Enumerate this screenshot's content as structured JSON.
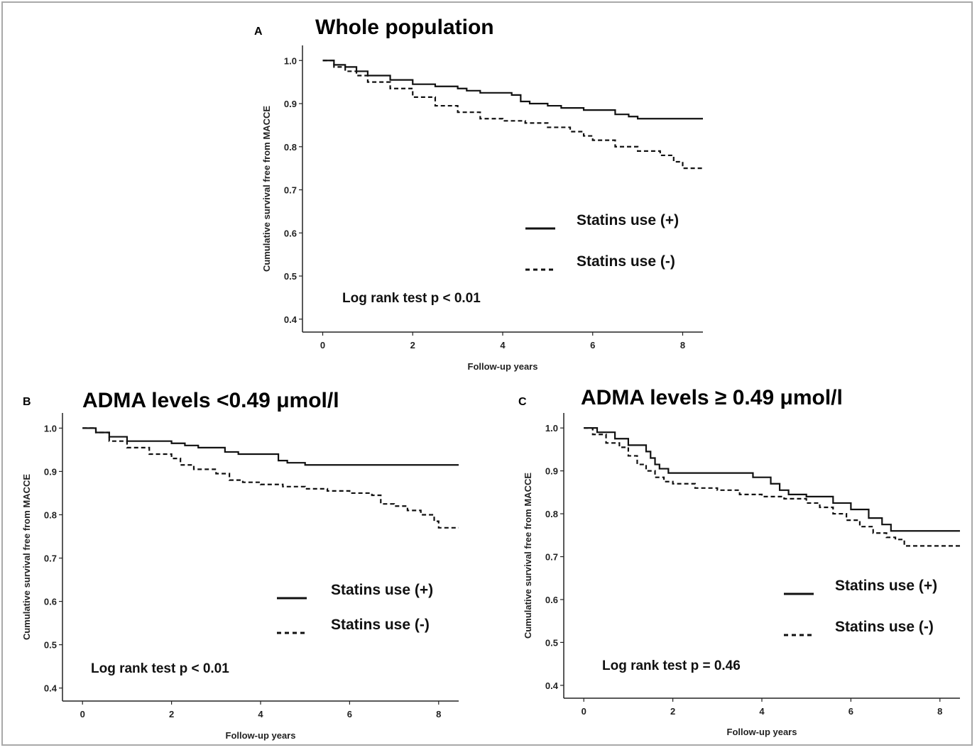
{
  "chart_data": [
    {
      "type": "line",
      "panel": "A",
      "title": "Whole population",
      "xlabel": "Follow-up years",
      "ylabel": "Cumulative survival free from MACCE",
      "xlim": [
        -0.45,
        8.45
      ],
      "ylim": [
        0.37,
        1.035
      ],
      "xticks": [
        0,
        2,
        4,
        6,
        8
      ],
      "yticks": [
        "0.4",
        "0.5",
        "0.6",
        "0.7",
        "0.8",
        "0.9",
        "1.0"
      ],
      "annotation": "Log rank test p < 0.01",
      "legend": [
        "Statins use (+)",
        "Statins use (-)"
      ],
      "series": [
        {
          "name": "Statins use (+)",
          "line_style": "solid",
          "x": [
            0,
            0.25,
            0.5,
            0.75,
            1.0,
            1.5,
            2.0,
            2.5,
            3.0,
            3.2,
            3.5,
            4.0,
            4.2,
            4.4,
            4.6,
            5.0,
            5.3,
            5.8,
            6.0,
            6.5,
            6.8,
            7.0,
            8.45
          ],
          "y": [
            1.0,
            0.99,
            0.985,
            0.975,
            0.965,
            0.955,
            0.945,
            0.94,
            0.935,
            0.93,
            0.925,
            0.925,
            0.92,
            0.905,
            0.9,
            0.895,
            0.89,
            0.885,
            0.885,
            0.875,
            0.87,
            0.865,
            0.865
          ]
        },
        {
          "name": "Statins use (-)",
          "line_style": "dashed",
          "x": [
            0,
            0.25,
            0.5,
            0.75,
            1.0,
            1.5,
            2.0,
            2.5,
            3.0,
            3.5,
            4.0,
            4.5,
            5.0,
            5.5,
            5.8,
            6.0,
            6.5,
            7.0,
            7.5,
            7.8,
            8.0,
            8.45
          ],
          "y": [
            1.0,
            0.985,
            0.975,
            0.965,
            0.95,
            0.935,
            0.915,
            0.895,
            0.88,
            0.865,
            0.86,
            0.855,
            0.845,
            0.835,
            0.825,
            0.815,
            0.8,
            0.79,
            0.78,
            0.765,
            0.75,
            0.75
          ]
        }
      ]
    },
    {
      "type": "line",
      "panel": "B",
      "title": "ADMA levels <0.49 μmol/l",
      "xlabel": "Follow-up years",
      "ylabel": "Cumulative survival free from MACCE",
      "xlim": [
        -0.45,
        8.45
      ],
      "ylim": [
        0.37,
        1.035
      ],
      "xticks": [
        0,
        2,
        4,
        6,
        8
      ],
      "yticks": [
        "0.4",
        "0.5",
        "0.6",
        "0.7",
        "0.8",
        "0.9",
        "1.0"
      ],
      "annotation": "Log rank test p < 0.01",
      "legend": [
        "Statins use (+)",
        "Statins use (-)"
      ],
      "series": [
        {
          "name": "Statins use (+)",
          "line_style": "solid",
          "x": [
            0,
            0.3,
            0.6,
            1.0,
            1.5,
            2.0,
            2.3,
            2.6,
            3.0,
            3.2,
            3.5,
            4.0,
            4.4,
            4.6,
            5.0,
            6.0,
            8.45
          ],
          "y": [
            1.0,
            0.99,
            0.98,
            0.97,
            0.97,
            0.965,
            0.96,
            0.955,
            0.955,
            0.945,
            0.94,
            0.94,
            0.925,
            0.92,
            0.915,
            0.915,
            0.915
          ]
        },
        {
          "name": "Statins use (-)",
          "line_style": "dashed",
          "x": [
            0,
            0.3,
            0.6,
            1.0,
            1.5,
            2.0,
            2.2,
            2.5,
            3.0,
            3.3,
            3.6,
            4.0,
            4.5,
            5.0,
            5.5,
            6.0,
            6.5,
            6.7,
            7.0,
            7.3,
            7.6,
            7.9,
            8.0,
            8.45
          ],
          "y": [
            1.0,
            0.99,
            0.97,
            0.955,
            0.94,
            0.93,
            0.915,
            0.905,
            0.895,
            0.88,
            0.875,
            0.87,
            0.865,
            0.86,
            0.855,
            0.85,
            0.845,
            0.825,
            0.82,
            0.81,
            0.8,
            0.785,
            0.77,
            0.77
          ]
        }
      ]
    },
    {
      "type": "line",
      "panel": "C",
      "title": "ADMA levels ≥ 0.49 μmol/l",
      "xlabel": "Follow-up years",
      "ylabel": "Cumulative survival free from MACCE",
      "xlim": [
        -0.45,
        8.45
      ],
      "ylim": [
        0.37,
        1.035
      ],
      "xticks": [
        0,
        2,
        4,
        6,
        8
      ],
      "yticks": [
        "0.4",
        "0.5",
        "0.6",
        "0.7",
        "0.8",
        "0.9",
        "1.0"
      ],
      "annotation": "Log rank test p = 0.46",
      "legend": [
        "Statins use (+)",
        "Statins use (-)"
      ],
      "series": [
        {
          "name": "Statins use (+)",
          "line_style": "solid",
          "x": [
            0,
            0.3,
            0.7,
            1.0,
            1.4,
            1.5,
            1.6,
            1.7,
            1.9,
            2.0,
            2.5,
            3.0,
            3.5,
            3.8,
            4.2,
            4.4,
            4.6,
            5.0,
            5.6,
            6.0,
            6.4,
            6.7,
            6.9,
            7.2,
            8.45
          ],
          "y": [
            1.0,
            0.99,
            0.975,
            0.96,
            0.945,
            0.93,
            0.915,
            0.905,
            0.895,
            0.895,
            0.895,
            0.895,
            0.895,
            0.885,
            0.87,
            0.855,
            0.845,
            0.84,
            0.825,
            0.81,
            0.79,
            0.775,
            0.76,
            0.76,
            0.76
          ]
        },
        {
          "name": "Statins use (-)",
          "line_style": "dashed",
          "x": [
            0,
            0.2,
            0.5,
            0.8,
            1.0,
            1.2,
            1.4,
            1.6,
            1.8,
            2.0,
            2.5,
            3.0,
            3.5,
            4.0,
            4.5,
            5.0,
            5.3,
            5.6,
            5.9,
            6.2,
            6.5,
            6.8,
            7.0,
            7.2,
            8.45
          ],
          "y": [
            1.0,
            0.985,
            0.965,
            0.955,
            0.935,
            0.915,
            0.9,
            0.885,
            0.875,
            0.87,
            0.86,
            0.855,
            0.845,
            0.84,
            0.835,
            0.825,
            0.815,
            0.8,
            0.785,
            0.77,
            0.755,
            0.745,
            0.74,
            0.725,
            0.725
          ]
        }
      ]
    }
  ]
}
